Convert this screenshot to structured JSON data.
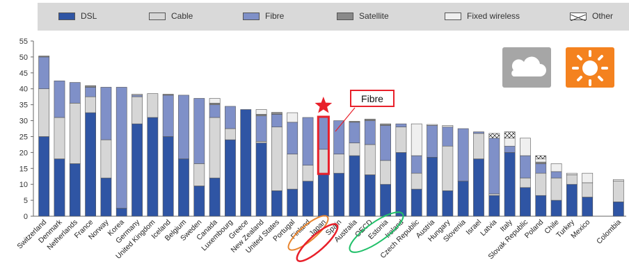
{
  "legend": {
    "items": [
      {
        "label": "DSL",
        "color": "#2f55a4"
      },
      {
        "label": "Cable",
        "color": "#d6d6d6"
      },
      {
        "label": "Fibre",
        "color": "#7f90c8"
      },
      {
        "label": "Satellite",
        "color": "#8a8a8a"
      },
      {
        "label": "Fixed wireless",
        "color": "#efefef"
      },
      {
        "label": "Other",
        "color": "#ffffff"
      }
    ]
  },
  "annotation": {
    "fibre_label": "Fibre"
  },
  "colors": {
    "weather_cloud_bg": "#a6a6a6",
    "weather_sun_bg": "#f4821f",
    "highlight": "#e8202a",
    "orange_ring": "#e8852f",
    "green_ring": "#22c06a"
  },
  "icons": [
    "cloud-icon",
    "sun-icon",
    "star-icon"
  ],
  "chart_data": {
    "type": "bar",
    "stacked": true,
    "ylim": [
      0,
      55
    ],
    "yticks": [
      0,
      5,
      10,
      15,
      20,
      25,
      30,
      35,
      40,
      45,
      50,
      55
    ],
    "categories": [
      "Switzerland",
      "Denmark",
      "Netherlands",
      "France",
      "Norway",
      "Korea",
      "Germany",
      "United Kingdom",
      "Iceland",
      "Belgium",
      "Sweden",
      "Canada",
      "Luxembourg",
      "Greece",
      "New Zealand",
      "United States",
      "Portugal",
      "Finland",
      "Japan",
      "Spain",
      "Australia",
      "OECD",
      "Estonia",
      "Ireland",
      "Czech Republic",
      "Austria",
      "Hungary",
      "Slovenia",
      "Israel",
      "Latvia",
      "Italy",
      "Slovak Republic",
      "Poland",
      "Chile",
      "Turkey",
      "Mexico",
      "",
      "Colombia"
    ],
    "series": [
      {
        "name": "DSL",
        "values": [
          25,
          18,
          16.5,
          32.5,
          12,
          2.5,
          29,
          31,
          25,
          18,
          9.5,
          12,
          24,
          33.5,
          23,
          8,
          8.5,
          11,
          13.5,
          13.5,
          19,
          13,
          10,
          20,
          8.5,
          18.5,
          8,
          11,
          18,
          6.5,
          20,
          9,
          6.5,
          5,
          10,
          6,
          0,
          4.5
        ]
      },
      {
        "name": "Cable",
        "values": [
          15,
          13,
          19,
          5,
          12,
          0,
          8.5,
          7.5,
          0,
          0,
          7,
          19,
          3.5,
          0,
          0.5,
          20,
          11,
          5,
          7.5,
          6,
          4,
          9.5,
          7.5,
          8,
          5,
          0,
          14,
          0,
          8,
          0.5,
          0,
          3,
          7,
          7,
          3,
          4.5,
          0,
          6.5
        ]
      },
      {
        "name": "Fibre",
        "values": [
          10,
          11.5,
          6.5,
          3,
          16.5,
          38,
          0.5,
          0,
          13,
          20,
          20.5,
          4,
          7,
          0,
          8,
          4,
          10,
          15,
          10,
          10.5,
          6.5,
          7.5,
          11,
          1,
          5.5,
          10,
          6,
          16.5,
          0.5,
          17.5,
          2,
          7,
          3,
          2,
          0,
          0,
          0,
          0
        ]
      },
      {
        "name": "Satellite",
        "values": [
          0.3,
          0,
          0,
          0.5,
          0,
          0,
          0,
          0,
          0.3,
          0,
          0,
          0.5,
          0,
          0,
          0.5,
          0.6,
          0,
          0,
          0,
          0,
          0.3,
          0.5,
          0.5,
          0,
          0,
          0,
          0,
          0,
          0,
          0,
          0,
          0,
          0.5,
          0,
          0,
          0,
          0,
          0
        ]
      },
      {
        "name": "Fixed wireless",
        "values": [
          0,
          0,
          0,
          0,
          0,
          0,
          0.3,
          0,
          0,
          0,
          0,
          1.5,
          0,
          0,
          1.5,
          0,
          3,
          0,
          0,
          0,
          0,
          0,
          0,
          0,
          10,
          0.3,
          0.5,
          0,
          0,
          0,
          2.5,
          5.5,
          1,
          2.5,
          0.5,
          3,
          0,
          0.5
        ]
      },
      {
        "name": "Other",
        "values": [
          0,
          0,
          0,
          0,
          0,
          0,
          0,
          0,
          0,
          0,
          0,
          0,
          0,
          0,
          0,
          0,
          0,
          0,
          0,
          0,
          0,
          0,
          0,
          0,
          0,
          0,
          0,
          0,
          0,
          1.5,
          2,
          0,
          1,
          0,
          0,
          0,
          0,
          0
        ]
      }
    ]
  }
}
